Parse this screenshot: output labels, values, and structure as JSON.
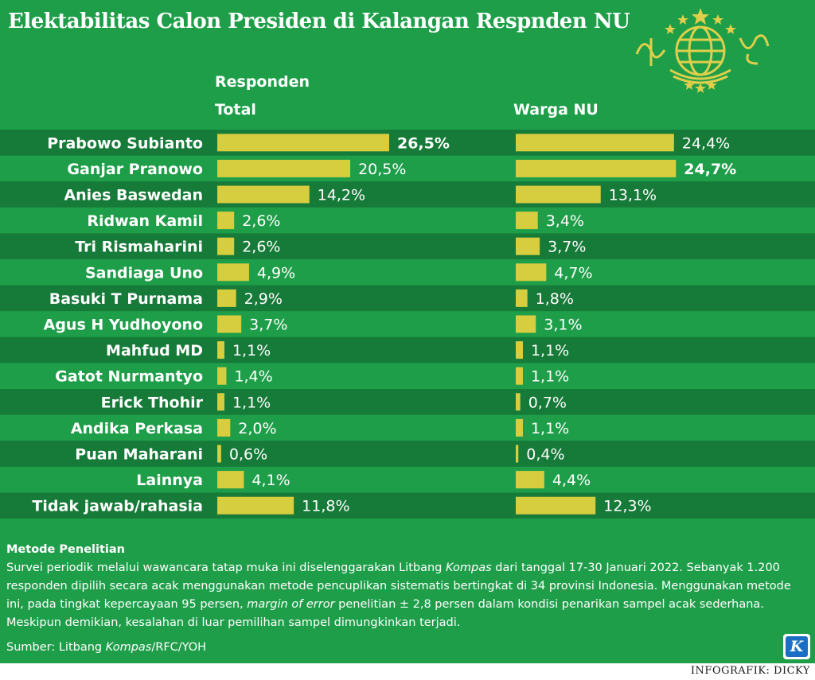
{
  "title": "Elektabilitas Calon Presiden di Kalangan Respnden NU",
  "headers": {
    "group": "Responden",
    "total": "Total",
    "nu": "Warga NU"
  },
  "colors": {
    "background": "#1f9e4a",
    "row_band_dark": "#167a38",
    "bar": "#d6cd3f",
    "text": "#ffffff",
    "logo_gold": "#e0cf4a"
  },
  "chart_data": {
    "type": "bar",
    "orientation": "horizontal",
    "unit": "%",
    "categories": [
      "Prabowo Subianto",
      "Ganjar Pranowo",
      "Anies Baswedan",
      "Ridwan Kamil",
      "Tri Rismaharini",
      "Sandiaga Uno",
      "Basuki T Purnama",
      "Agus H Yudhoyono",
      "Mahfud MD",
      "Gatot Nurmantyo",
      "Erick Thohir",
      "Andika Perkasa",
      "Puan Maharani",
      "Lainnya",
      "Tidak jawab/rahasia"
    ],
    "series": [
      {
        "name": "Total",
        "values": [
          26.5,
          20.5,
          14.2,
          2.6,
          2.6,
          4.9,
          2.9,
          3.7,
          1.1,
          1.4,
          1.1,
          2.0,
          0.6,
          4.1,
          11.8
        ],
        "labels": [
          "26,5%",
          "20,5%",
          "14,2%",
          "2,6%",
          "2,6%",
          "4,9%",
          "2,9%",
          "3,7%",
          "1,1%",
          "1,4%",
          "1,1%",
          "2,0%",
          "0,6%",
          "4,1%",
          "11,8%"
        ],
        "highlight_index": 0
      },
      {
        "name": "Warga NU",
        "values": [
          24.4,
          24.7,
          13.1,
          3.4,
          3.7,
          4.7,
          1.8,
          3.1,
          1.1,
          1.1,
          0.7,
          1.1,
          0.4,
          4.4,
          12.3
        ],
        "labels": [
          "24,4%",
          "24,7%",
          "13,1%",
          "3,4%",
          "3,7%",
          "4,7%",
          "1,8%",
          "3,1%",
          "1,1%",
          "1,1%",
          "0,7%",
          "1,1%",
          "0,4%",
          "4,4%",
          "12,3%"
        ],
        "highlight_index": 1
      }
    ]
  },
  "methods": {
    "title": "Metode Penelitian",
    "text_1": "Survei periodik melalui wawancara tatap muka ini diselenggarakan Litbang ",
    "text_1_italic": "Kompas",
    "text_2": " dari tanggal 17-30 Januari 2022. Sebanyak 1.200 responden dipilih secara acak menggunakan metode pencuplikan sistematis bertingkat di 34 provinsi Indonesia. Menggunakan metode ini, pada tingkat kepercayaan 95 persen, ",
    "text_2_italic": "margin of error",
    "text_3": " penelitian ± 2,8 persen dalam kondisi penarikan sampel acak sederhana. Meskipun demikian, kesalahan di luar pemilihan sampel dimungkinkan terjadi."
  },
  "source": {
    "prefix": "Sumber: Litbang ",
    "italic": "Kompas",
    "suffix": "/RFC/YOH"
  },
  "credit": "INFOGRAFIK: DICKY",
  "logo_letter": "K",
  "icons": {
    "nu_emblem": "nu-emblem-icon",
    "kompas_logo": "kompas-k-icon"
  }
}
